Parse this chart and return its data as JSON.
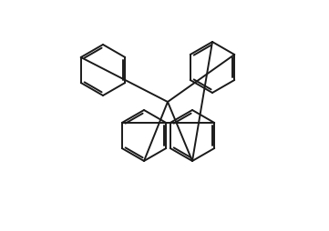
{
  "background": "#ffffff",
  "line_color": "#1a1a1a",
  "line_width": 1.4,
  "text_color": "#1a1a1a",
  "figsize": [
    3.61,
    2.55
  ],
  "dpi": 100
}
